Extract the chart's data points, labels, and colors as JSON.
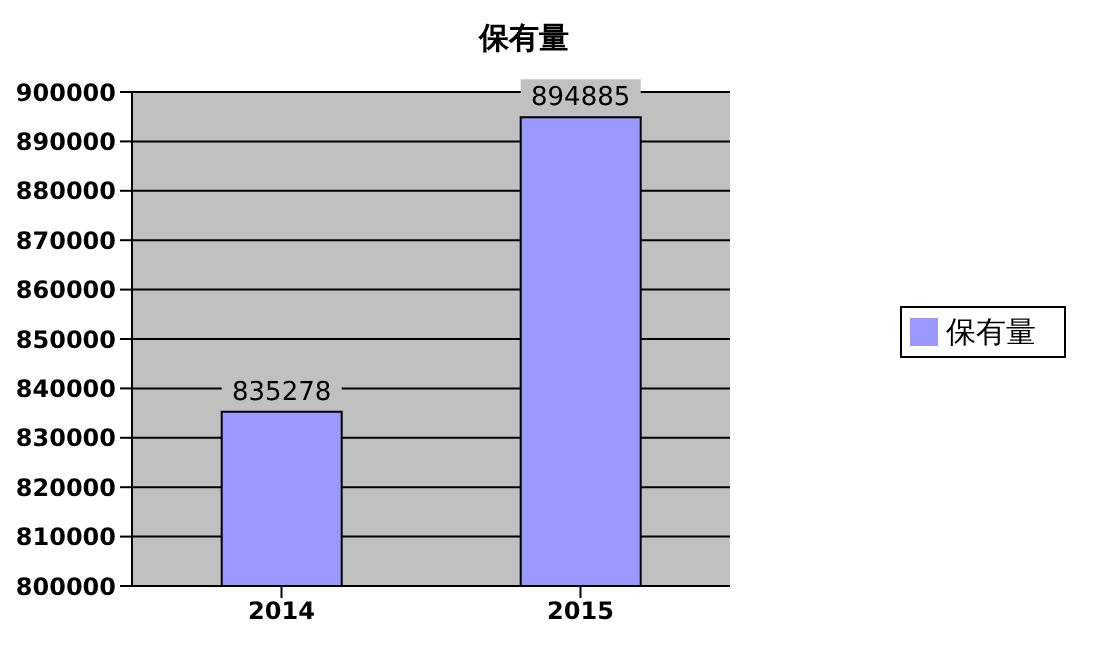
{
  "chart_data": {
    "type": "bar",
    "title": "保有量",
    "categories": [
      "2014",
      "2015"
    ],
    "series": [
      {
        "name": "保有量",
        "color": "#9999ff",
        "values": [
          835278,
          894885
        ]
      }
    ],
    "ylim": [
      800000,
      900000
    ],
    "yticks": [
      800000,
      810000,
      820000,
      830000,
      840000,
      850000,
      860000,
      870000,
      880000,
      890000,
      900000
    ],
    "grid": "y",
    "legend": "right",
    "data_labels": true
  }
}
